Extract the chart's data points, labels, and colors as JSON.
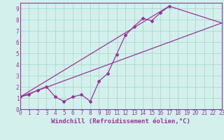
{
  "bg_color": "#d4f0ec",
  "grid_color": "#a8d8d0",
  "line_color": "#993399",
  "marker_color": "#993399",
  "xlabel": "Windchill (Refroidissement éolien,°C)",
  "ylabel_ticks": [
    0,
    1,
    2,
    3,
    4,
    5,
    6,
    7,
    8,
    9
  ],
  "xlabel_ticks": [
    0,
    1,
    2,
    3,
    4,
    5,
    6,
    7,
    8,
    9,
    10,
    11,
    12,
    13,
    14,
    15,
    16,
    17,
    18,
    19,
    20,
    21,
    22,
    23
  ],
  "xlim": [
    0,
    23
  ],
  "ylim": [
    0,
    9.5
  ],
  "jagged_x": [
    0,
    1,
    2,
    3,
    4,
    5,
    6,
    7,
    8,
    9,
    10,
    11,
    12,
    13,
    14,
    15,
    16,
    17
  ],
  "jagged_y": [
    1.1,
    1.3,
    1.7,
    2.0,
    1.1,
    0.7,
    1.1,
    1.3,
    0.7,
    2.5,
    3.2,
    4.9,
    6.6,
    7.4,
    8.1,
    7.9,
    8.6,
    9.2
  ],
  "lower_line_x": [
    0,
    23
  ],
  "lower_line_y": [
    1.1,
    7.7
  ],
  "upper_line_x": [
    0,
    17,
    23
  ],
  "upper_line_y": [
    1.1,
    9.2,
    7.7
  ],
  "tick_fontsize": 5.5,
  "axis_label_fontsize": 6.5
}
